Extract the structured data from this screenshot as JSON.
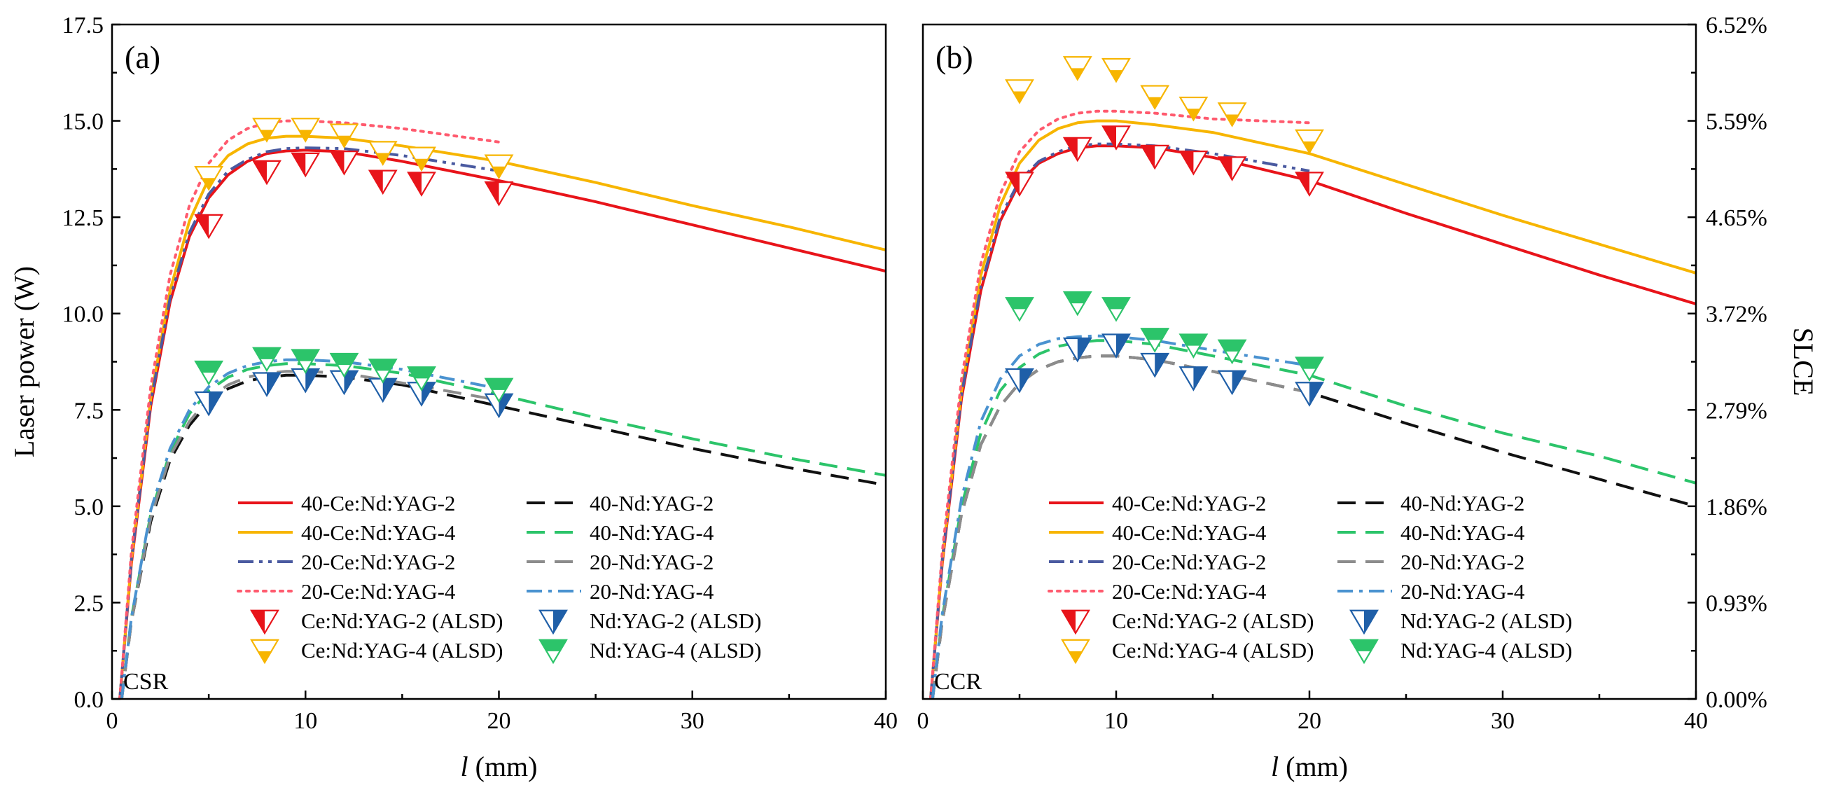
{
  "colors": {
    "ce2": "#e8141a",
    "ce4": "#f7b500",
    "ce2_20": "#4a5aa0",
    "ce4_20": "#ff5a6e",
    "nd2": "#111111",
    "nd4": "#2cc46a",
    "nd2_20": "#8c8c8c",
    "nd4_20": "#4a92d0",
    "nd2_marker": "#1f5fa8",
    "nd4_marker": "#2cc46a"
  },
  "chart_data": [
    {
      "panel": "a",
      "type": "line",
      "panel_label": "(a)",
      "corner_label": "CSR",
      "xlabel_italic": "l",
      "xlabel_rest": " (mm)",
      "ylabel": "Laser power (W)",
      "xlim": [
        0,
        40
      ],
      "ylim": [
        0,
        17.5
      ],
      "xticks": [
        "0",
        "10",
        "20",
        "30",
        "40"
      ],
      "yticks": [
        "0.0",
        "2.5",
        "5.0",
        "7.5",
        "10.0",
        "12.5",
        "15.0",
        "17.5"
      ],
      "series": [
        {
          "name": "40-Ce:Nd:YAG-2",
          "key": "ce2",
          "style": "solid",
          "x": [
            0.4,
            1,
            2,
            3,
            4,
            5,
            6,
            7,
            8,
            9,
            10,
            12,
            15,
            20,
            25,
            30,
            35,
            40
          ],
          "y": [
            0,
            3.5,
            7.6,
            10.3,
            12.0,
            13.0,
            13.6,
            13.95,
            14.15,
            14.22,
            14.24,
            14.2,
            13.95,
            13.45,
            12.9,
            12.3,
            11.7,
            11.1
          ]
        },
        {
          "name": "40-Ce:Nd:YAG-4",
          "key": "ce4",
          "style": "solid",
          "x": [
            0.4,
            1,
            2,
            3,
            4,
            5,
            6,
            7,
            8,
            9,
            10,
            12,
            15,
            20,
            25,
            30,
            35,
            40
          ],
          "y": [
            0,
            3.6,
            7.8,
            10.6,
            12.4,
            13.5,
            14.1,
            14.4,
            14.55,
            14.6,
            14.6,
            14.55,
            14.35,
            13.95,
            13.4,
            12.8,
            12.25,
            11.65
          ]
        },
        {
          "name": "20-Ce:Nd:YAG-2",
          "key": "ce2_20",
          "style": "dashdotdot",
          "x": [
            0.4,
            1,
            2,
            3,
            4,
            5,
            6,
            7,
            8,
            9,
            10,
            12,
            15,
            20
          ],
          "y": [
            0,
            3.6,
            7.7,
            10.4,
            12.1,
            13.1,
            13.7,
            14.0,
            14.2,
            14.28,
            14.3,
            14.28,
            14.1,
            13.7
          ]
        },
        {
          "name": "20-Ce:Nd:YAG-4",
          "key": "ce4_20",
          "style": "dotted",
          "x": [
            0.4,
            1,
            2,
            3,
            4,
            5,
            6,
            7,
            8,
            9,
            10,
            12,
            15,
            20
          ],
          "y": [
            0,
            3.8,
            8.1,
            11.0,
            12.8,
            13.9,
            14.5,
            14.8,
            14.95,
            15.0,
            15.0,
            14.95,
            14.8,
            14.45
          ]
        },
        {
          "name": "40-Nd:YAG-2",
          "key": "nd2",
          "style": "dash",
          "x": [
            0.5,
            1,
            2,
            3,
            4,
            5,
            6,
            7,
            8,
            9,
            10,
            12,
            15,
            20,
            25,
            30,
            35,
            40
          ],
          "y": [
            0,
            2.0,
            4.6,
            6.2,
            7.1,
            7.7,
            8.05,
            8.25,
            8.35,
            8.4,
            8.4,
            8.35,
            8.15,
            7.6,
            7.05,
            6.5,
            6.0,
            5.55
          ]
        },
        {
          "name": "40-Nd:YAG-4",
          "key": "nd4",
          "style": "dash",
          "x": [
            0.5,
            1,
            2,
            3,
            4,
            5,
            6,
            7,
            8,
            9,
            10,
            12,
            15,
            20,
            25,
            30,
            35,
            40
          ],
          "y": [
            0,
            2.1,
            4.8,
            6.4,
            7.4,
            8.0,
            8.35,
            8.55,
            8.65,
            8.7,
            8.7,
            8.65,
            8.45,
            7.9,
            7.3,
            6.75,
            6.25,
            5.8
          ]
        },
        {
          "name": "20-Nd:YAG-2",
          "key": "nd2_20",
          "style": "dash",
          "x": [
            0.5,
            1,
            2,
            3,
            4,
            5,
            6,
            7,
            8,
            9,
            10,
            12,
            15,
            20
          ],
          "y": [
            0,
            2.0,
            4.7,
            6.3,
            7.2,
            7.8,
            8.15,
            8.35,
            8.45,
            8.5,
            8.5,
            8.45,
            8.2,
            7.75
          ]
        },
        {
          "name": "20-Nd:YAG-4",
          "key": "nd4_20",
          "style": "dashdot",
          "x": [
            0.5,
            1,
            2,
            3,
            4,
            5,
            6,
            7,
            8,
            9,
            10,
            12,
            15,
            20
          ],
          "y": [
            0,
            2.1,
            4.9,
            6.5,
            7.5,
            8.1,
            8.45,
            8.65,
            8.75,
            8.8,
            8.8,
            8.75,
            8.55,
            8.05
          ]
        }
      ],
      "markers": [
        {
          "name": "Ce:Nd:YAG-2 (ALSD)",
          "key": "ce2",
          "fill": "left",
          "x": [
            5,
            8,
            10,
            12,
            14,
            16,
            20
          ],
          "y": [
            12.3,
            13.7,
            13.9,
            13.95,
            13.45,
            13.4,
            13.15
          ]
        },
        {
          "name": "Ce:Nd:YAG-4 (ALSD)",
          "key": "ce4",
          "fill": "bottom",
          "x": [
            5,
            8,
            10,
            12,
            14,
            16,
            20
          ],
          "y": [
            13.55,
            14.8,
            14.8,
            14.65,
            14.2,
            14.05,
            13.85
          ]
        },
        {
          "name": "Nd:YAG-2 (ALSD)",
          "key": "nd2_marker",
          "fill": "right",
          "x": [
            5,
            8,
            10,
            12,
            14,
            16,
            20
          ],
          "y": [
            7.7,
            8.2,
            8.3,
            8.25,
            8.05,
            7.95,
            7.65
          ]
        },
        {
          "name": "Nd:YAG-4 (ALSD)",
          "key": "nd4_marker",
          "fill": "top",
          "x": [
            5,
            8,
            10,
            12,
            14,
            16,
            20
          ],
          "y": [
            8.5,
            8.85,
            8.8,
            8.7,
            8.55,
            8.35,
            8.05
          ]
        }
      ]
    },
    {
      "panel": "b",
      "type": "line",
      "panel_label": "(b)",
      "corner_label": "CCR",
      "xlabel_italic": "l",
      "xlabel_rest": " (mm)",
      "y2label": "SLCE",
      "xlim": [
        0,
        40
      ],
      "ylim": [
        0,
        17.5
      ],
      "xticks": [
        "0",
        "10",
        "20",
        "30",
        "40"
      ],
      "y2ticks": [
        "0.00%",
        "0.93%",
        "1.86%",
        "2.79%",
        "3.72%",
        "4.65%",
        "5.59%",
        "6.52%"
      ],
      "series": [
        {
          "name": "40-Ce:Nd:YAG-2",
          "key": "ce2",
          "style": "solid",
          "x": [
            0.4,
            1,
            2,
            3,
            4,
            5,
            6,
            7,
            8,
            9,
            10,
            12,
            15,
            20,
            25,
            30,
            35,
            40
          ],
          "y": [
            0,
            3.5,
            7.8,
            10.6,
            12.4,
            13.4,
            13.9,
            14.15,
            14.3,
            14.35,
            14.35,
            14.3,
            14.05,
            13.45,
            12.6,
            11.8,
            11.0,
            10.25
          ]
        },
        {
          "name": "40-Ce:Nd:YAG-4",
          "key": "ce4",
          "style": "solid",
          "x": [
            0.4,
            1,
            2,
            3,
            4,
            5,
            6,
            7,
            8,
            9,
            10,
            12,
            15,
            20,
            25,
            30,
            35,
            40
          ],
          "y": [
            0,
            3.6,
            8.0,
            11.0,
            12.8,
            13.9,
            14.5,
            14.8,
            14.95,
            15.0,
            15.0,
            14.9,
            14.7,
            14.15,
            13.35,
            12.55,
            11.8,
            11.05
          ]
        },
        {
          "name": "20-Ce:Nd:YAG-2",
          "key": "ce2_20",
          "style": "dashdotdot",
          "x": [
            0.4,
            1,
            2,
            3,
            4,
            5,
            6,
            7,
            8,
            9,
            10,
            12,
            15,
            20
          ],
          "y": [
            0,
            3.6,
            7.9,
            10.7,
            12.5,
            13.45,
            13.95,
            14.2,
            14.35,
            14.4,
            14.4,
            14.35,
            14.15,
            13.7
          ]
        },
        {
          "name": "20-Ce:Nd:YAG-4",
          "key": "ce4_20",
          "style": "dotted",
          "x": [
            0.4,
            1,
            2,
            3,
            4,
            5,
            6,
            7,
            8,
            9,
            10,
            12,
            15,
            20
          ],
          "y": [
            0,
            3.8,
            8.3,
            11.3,
            13.1,
            14.2,
            14.75,
            15.05,
            15.2,
            15.25,
            15.25,
            15.2,
            15.05,
            14.95
          ]
        },
        {
          "name": "40-Nd:YAG-2",
          "key": "nd2",
          "style": "dash",
          "x": [
            0.5,
            1,
            2,
            3,
            4,
            5,
            6,
            7,
            8,
            9,
            10,
            12,
            15,
            20,
            25,
            30,
            35,
            40
          ],
          "y": [
            0,
            2.0,
            4.8,
            6.6,
            7.6,
            8.2,
            8.55,
            8.75,
            8.85,
            8.9,
            8.9,
            8.8,
            8.5,
            7.95,
            7.15,
            6.4,
            5.7,
            5.0
          ]
        },
        {
          "name": "40-Nd:YAG-4",
          "key": "nd4",
          "style": "dash",
          "x": [
            0.5,
            1,
            2,
            3,
            4,
            5,
            6,
            7,
            8,
            9,
            10,
            12,
            15,
            20,
            25,
            30,
            35,
            40
          ],
          "y": [
            0,
            2.1,
            5.0,
            6.9,
            8.0,
            8.6,
            8.95,
            9.15,
            9.25,
            9.3,
            9.3,
            9.2,
            8.9,
            8.4,
            7.6,
            6.9,
            6.3,
            5.6
          ]
        },
        {
          "name": "20-Nd:YAG-2",
          "key": "nd2_20",
          "style": "dash",
          "x": [
            0.5,
            1,
            2,
            3,
            4,
            5,
            6,
            7,
            8,
            9,
            10,
            12,
            15,
            20
          ],
          "y": [
            0,
            2.0,
            4.8,
            6.6,
            7.6,
            8.2,
            8.55,
            8.75,
            8.85,
            8.9,
            8.9,
            8.8,
            8.5,
            7.95
          ]
        },
        {
          "name": "20-Nd:YAG-4",
          "key": "nd4_20",
          "style": "dashdot",
          "x": [
            0.5,
            1,
            2,
            3,
            4,
            5,
            6,
            7,
            8,
            9,
            10,
            12,
            15,
            20
          ],
          "y": [
            0,
            2.2,
            5.2,
            7.2,
            8.3,
            8.9,
            9.2,
            9.35,
            9.4,
            9.42,
            9.4,
            9.3,
            9.05,
            8.65
          ]
        }
      ],
      "markers": [
        {
          "name": "Ce:Nd:YAG-2 (ALSD)",
          "key": "ce2",
          "fill": "left",
          "x": [
            5,
            8,
            10,
            12,
            14,
            16,
            20
          ],
          "y": [
            13.4,
            14.3,
            14.6,
            14.1,
            13.95,
            13.8,
            13.4
          ]
        },
        {
          "name": "Ce:Nd:YAG-4 (ALSD)",
          "key": "ce4",
          "fill": "bottom",
          "x": [
            5,
            8,
            10,
            12,
            14,
            16,
            20
          ],
          "y": [
            15.8,
            16.4,
            16.35,
            15.65,
            15.35,
            15.2,
            14.5
          ]
        },
        {
          "name": "Nd:YAG-2 (ALSD)",
          "key": "nd2_marker",
          "fill": "right",
          "x": [
            5,
            8,
            10,
            12,
            14,
            16,
            20
          ],
          "y": [
            8.3,
            9.1,
            9.2,
            8.7,
            8.35,
            8.25,
            7.95
          ]
        },
        {
          "name": "Nd:YAG-4 (ALSD)",
          "key": "nd4_marker",
          "fill": "top",
          "x": [
            5,
            8,
            10,
            12,
            14,
            16,
            20
          ],
          "y": [
            10.15,
            10.3,
            10.15,
            9.35,
            9.2,
            9.05,
            8.6
          ]
        }
      ]
    }
  ]
}
